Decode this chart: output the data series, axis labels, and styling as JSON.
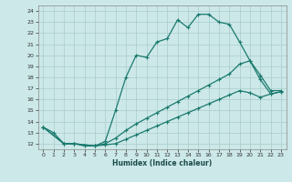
{
  "xlabel": "Humidex (Indice chaleur)",
  "background_color": "#cce8e8",
  "grid_color": "#aacccc",
  "line_color": "#1a7a6e",
  "xlim": [
    -0.5,
    23.5
  ],
  "ylim": [
    11.5,
    24.5
  ],
  "xticks": [
    0,
    1,
    2,
    3,
    4,
    5,
    6,
    7,
    8,
    9,
    10,
    11,
    12,
    13,
    14,
    15,
    16,
    17,
    18,
    19,
    20,
    21,
    22,
    23
  ],
  "yticks": [
    12,
    13,
    14,
    15,
    16,
    17,
    18,
    19,
    20,
    21,
    22,
    23,
    24
  ],
  "line1_x": [
    0,
    1,
    2,
    3,
    4,
    5,
    6,
    7,
    8,
    9,
    10,
    11,
    12,
    13,
    14,
    15,
    16,
    17,
    18,
    19,
    20,
    21,
    22,
    23
  ],
  "line1_y": [
    13.5,
    13.0,
    12.0,
    12.0,
    11.8,
    11.8,
    12.2,
    15.0,
    18.0,
    20.0,
    19.8,
    21.2,
    21.5,
    23.2,
    22.5,
    23.7,
    23.7,
    23.0,
    22.8,
    21.2,
    19.5,
    18.2,
    16.8,
    16.8
  ],
  "line2_x": [
    0,
    2,
    3,
    5,
    6,
    7,
    8,
    9,
    10,
    11,
    12,
    13,
    14,
    15,
    16,
    17,
    18,
    19,
    20,
    21,
    22,
    23
  ],
  "line2_y": [
    13.5,
    12.0,
    12.0,
    11.8,
    12.0,
    12.5,
    13.2,
    13.8,
    14.3,
    14.8,
    15.3,
    15.8,
    16.3,
    16.8,
    17.3,
    17.8,
    18.3,
    19.2,
    19.5,
    17.8,
    16.5,
    16.7
  ],
  "line3_x": [
    0,
    2,
    3,
    5,
    6,
    7,
    8,
    9,
    10,
    11,
    12,
    13,
    14,
    15,
    16,
    17,
    18,
    19,
    20,
    21,
    22,
    23
  ],
  "line3_y": [
    13.5,
    12.0,
    12.0,
    11.8,
    11.9,
    12.0,
    12.4,
    12.8,
    13.2,
    13.6,
    14.0,
    14.4,
    14.8,
    15.2,
    15.6,
    16.0,
    16.4,
    16.8,
    16.6,
    16.2,
    16.5,
    16.7
  ]
}
